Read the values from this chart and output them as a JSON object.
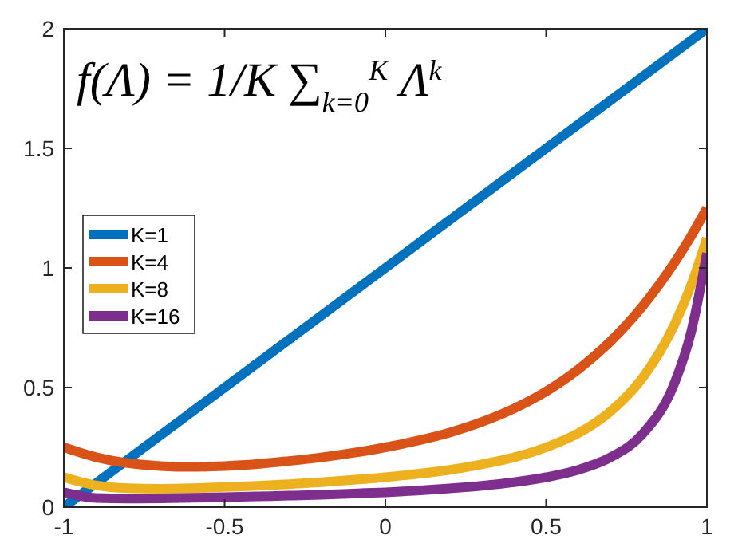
{
  "chart_data": {
    "type": "line",
    "title": "f(Λ) = 1/K ∑$_{k=0}$$^{K}$ Λ$^{k}$",
    "x": [
      -1,
      -0.9,
      -0.8,
      -0.7,
      -0.6,
      -0.5,
      -0.4,
      -0.3,
      -0.2,
      -0.1,
      0,
      0.1,
      0.2,
      0.3,
      0.4,
      0.5,
      0.6,
      0.7,
      0.8,
      0.9,
      0.95,
      1
    ],
    "series": [
      {
        "name": "K=1",
        "color": "#0072bd",
        "values": [
          0,
          0.1,
          0.2,
          0.3,
          0.4,
          0.5,
          0.6,
          0.7,
          0.8,
          0.9,
          1,
          1.1,
          1.2,
          1.3,
          1.4,
          1.5,
          1.6,
          1.7,
          1.8,
          1.9,
          1.95,
          2
        ]
      },
      {
        "name": "K=4",
        "color": "#d95319",
        "values": [
          0.25,
          0.209,
          0.184,
          0.172,
          0.168,
          0.172,
          0.18,
          0.193,
          0.208,
          0.227,
          0.25,
          0.278,
          0.312,
          0.356,
          0.412,
          0.484,
          0.576,
          0.693,
          0.84,
          1.024,
          1.131,
          1.25
        ]
      },
      {
        "name": "K=8",
        "color": "#edb120",
        "values": [
          0.125,
          0.091,
          0.079,
          0.077,
          0.079,
          0.084,
          0.089,
          0.096,
          0.104,
          0.114,
          0.125,
          0.139,
          0.156,
          0.179,
          0.208,
          0.25,
          0.309,
          0.4,
          0.541,
          0.766,
          0.925,
          1.125
        ]
      },
      {
        "name": "K=16",
        "color": "#7e2f8e",
        "values": [
          0.062,
          0.038,
          0.036,
          0.037,
          0.039,
          0.042,
          0.045,
          0.048,
          0.052,
          0.057,
          0.062,
          0.069,
          0.078,
          0.089,
          0.104,
          0.125,
          0.156,
          0.208,
          0.306,
          0.521,
          0.727,
          1.062
        ]
      }
    ],
    "xlim": [
      -1,
      1
    ],
    "xticks": [
      -1,
      -0.5,
      0,
      0.5,
      1
    ],
    "ylim": [
      0,
      2
    ],
    "yticks": [
      0,
      0.5,
      1,
      1.5,
      2
    ],
    "grid": false,
    "legend": "left",
    "marker": "none",
    "line_style": "solid"
  }
}
